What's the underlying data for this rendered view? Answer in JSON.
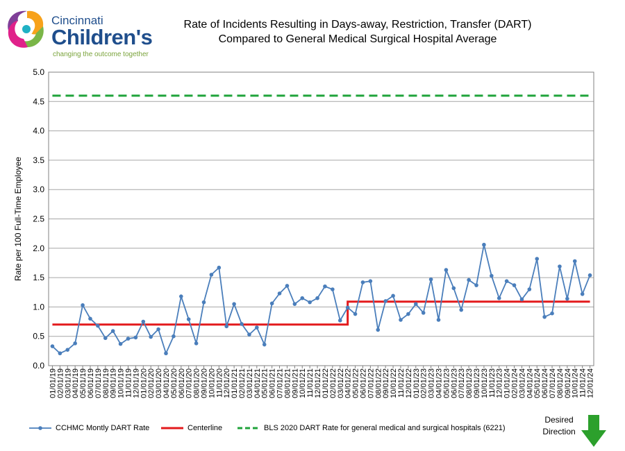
{
  "logo": {
    "icon": "cincinnati-childrens-logo-icon",
    "line1": "Cincinnati",
    "line2": "Children's",
    "tagline": "changing the outcome together"
  },
  "title_line1": "Rate of Incidents Resulting in Days-away, Restriction, Transfer (DART)",
  "title_line2": "Compared to General Medical Surgical Hospital Average",
  "desired_direction": {
    "line1": "Desired",
    "line2": "Direction",
    "icon": "down-arrow-icon",
    "color": "#2ca02c"
  },
  "chart_data": {
    "type": "line",
    "ylabel": "Rate per 100 Full-Time  Employee",
    "xlabel": "",
    "ylim": [
      0,
      5
    ],
    "yticks": [
      "0.0",
      "0.5",
      "1.0",
      "1.5",
      "2.0",
      "2.5",
      "3.0",
      "3.5",
      "4.0",
      "4.5",
      "5.0"
    ],
    "grid": true,
    "legend_position": "bottom",
    "x": [
      "01/01/19",
      "02/01/19",
      "03/01/19",
      "04/01/19",
      "05/01/19",
      "06/01/19",
      "07/01/19",
      "08/01/19",
      "09/01/19",
      "10/01/19",
      "11/01/19",
      "12/01/19",
      "01/01/20",
      "02/01/20",
      "03/01/20",
      "04/01/20",
      "05/01/20",
      "06/01/20",
      "07/01/20",
      "08/01/20",
      "09/01/20",
      "10/01/20",
      "11/01/20",
      "12/01/20",
      "01/01/21",
      "02/01/21",
      "03/01/21",
      "04/01/21",
      "05/01/21",
      "06/01/21",
      "07/01/21",
      "08/01/21",
      "09/01/21",
      "10/01/21",
      "11/01/21",
      "12/01/21",
      "01/01/22",
      "02/01/22",
      "03/01/22",
      "04/01/22",
      "05/01/22",
      "06/01/22",
      "07/01/22",
      "08/01/22",
      "09/01/22",
      "10/01/22",
      "11/01/22",
      "12/01/22",
      "01/01/23",
      "02/01/23",
      "03/01/23",
      "04/01/23",
      "05/01/23",
      "06/01/23",
      "07/01/23",
      "08/01/23",
      "09/01/23",
      "10/01/23",
      "11/01/23",
      "12/01/23",
      "01/01/24",
      "02/01/24",
      "03/01/24",
      "04/01/24",
      "05/01/24",
      "06/01/24",
      "07/01/24",
      "08/01/24",
      "09/01/24",
      "10/01/24",
      "11/01/24",
      "12/01/24"
    ],
    "series": [
      {
        "name": "CCHMC Montly DART Rate",
        "color": "#4a7ebb",
        "style": "line-markers",
        "values": [
          0.33,
          0.21,
          0.27,
          0.38,
          1.03,
          0.8,
          0.68,
          0.47,
          0.59,
          0.37,
          0.46,
          0.48,
          0.75,
          0.49,
          0.62,
          0.21,
          0.5,
          1.18,
          0.79,
          0.38,
          1.08,
          1.55,
          1.67,
          0.67,
          1.05,
          0.71,
          0.53,
          0.65,
          0.36,
          1.06,
          1.23,
          1.36,
          1.05,
          1.15,
          1.08,
          1.15,
          1.35,
          1.3,
          0.77,
          0.99,
          0.88,
          1.42,
          1.44,
          0.61,
          1.1,
          1.19,
          0.78,
          0.88,
          1.05,
          0.9,
          1.47,
          0.78,
          1.63,
          1.32,
          0.95,
          1.46,
          1.37,
          2.06,
          1.53,
          1.15,
          1.44,
          1.37,
          1.13,
          1.3,
          1.82,
          0.83,
          0.89,
          1.69,
          1.14,
          1.78,
          1.22,
          1.54
        ]
      },
      {
        "name": "Centerline",
        "color": "#e31a1c",
        "style": "step",
        "values": [
          0.7,
          0.7,
          0.7,
          0.7,
          0.7,
          0.7,
          0.7,
          0.7,
          0.7,
          0.7,
          0.7,
          0.7,
          0.7,
          0.7,
          0.7,
          0.7,
          0.7,
          0.7,
          0.7,
          0.7,
          0.7,
          0.7,
          0.7,
          0.7,
          0.7,
          0.7,
          0.7,
          0.7,
          0.7,
          0.7,
          0.7,
          0.7,
          0.7,
          0.7,
          0.7,
          0.7,
          0.7,
          0.7,
          0.7,
          1.09,
          1.09,
          1.09,
          1.09,
          1.09,
          1.09,
          1.09,
          1.09,
          1.09,
          1.09,
          1.09,
          1.09,
          1.09,
          1.09,
          1.09,
          1.09,
          1.09,
          1.09,
          1.09,
          1.09,
          1.09,
          1.09,
          1.09,
          1.09,
          1.09,
          1.09,
          1.09,
          1.09,
          1.09,
          1.09,
          1.09,
          1.09,
          1.09
        ]
      },
      {
        "name": "BLS 2020 DART Rate for general medical and surgical hospitals (6221)",
        "color": "#1fa33a",
        "style": "dashed",
        "value": 4.6
      }
    ]
  }
}
